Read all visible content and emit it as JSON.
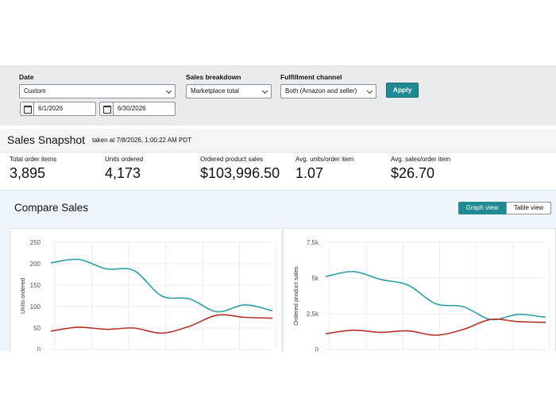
{
  "filters": {
    "date": {
      "label": "Date",
      "preset": "Custom",
      "start": "6/1/2026",
      "end": "6/30/2026"
    },
    "sales_breakdown": {
      "label": "Sales breakdown",
      "value": "Marketplace total"
    },
    "fulfillment": {
      "label": "Fulfillment channel",
      "value": "Both (Amazon and seller)"
    },
    "apply_label": "Apply"
  },
  "snapshot": {
    "title": "Sales Snapshot",
    "taken_at": "taken at 7/8/2026, 1:00:22 AM PDT",
    "metrics": [
      {
        "label": "Total order items",
        "value": "3,895"
      },
      {
        "label": "Units ordered",
        "value": "4,173"
      },
      {
        "label": "Ordered product sales",
        "value": "$103,996.50"
      },
      {
        "label": "Avg. units/order item",
        "value": "1.07"
      },
      {
        "label": "Avg. sales/order item",
        "value": "$26.70"
      }
    ]
  },
  "compare": {
    "title": "Compare Sales",
    "graph_view_label": "Graph view",
    "table_view_label": "Table view"
  },
  "colors": {
    "teal": "#2a9fa6",
    "red": "#b0342b",
    "accent": "#1f8a91"
  },
  "chart_data": [
    {
      "type": "line",
      "ylabel": "Units ordered",
      "ylim": [
        0,
        250
      ],
      "yticks": [
        "0",
        "50",
        "100",
        "150",
        "200",
        "250"
      ],
      "x": [
        0,
        1,
        2,
        3,
        4,
        5,
        6,
        7,
        8
      ],
      "series": [
        {
          "color": "#2a9fa6",
          "values": [
            202,
            210,
            188,
            184,
            125,
            118,
            88,
            104,
            90
          ]
        },
        {
          "color": "#b0342b",
          "values": [
            43,
            52,
            47,
            50,
            38,
            54,
            80,
            75,
            73
          ]
        }
      ]
    },
    {
      "type": "line",
      "ylabel": "Ordered product sales",
      "ylim": [
        0,
        7500
      ],
      "yticks": [
        "0",
        "2.5k",
        "5k",
        "7.5k"
      ],
      "x": [
        0,
        1,
        2,
        3,
        4,
        5,
        6,
        7,
        8
      ],
      "series": [
        {
          "color": "#2a9fa6",
          "values": [
            5100,
            5450,
            4900,
            4500,
            3200,
            3000,
            2100,
            2450,
            2250
          ]
        },
        {
          "color": "#b0342b",
          "values": [
            1100,
            1350,
            1200,
            1300,
            1000,
            1400,
            2100,
            1950,
            1900
          ]
        }
      ]
    }
  ]
}
